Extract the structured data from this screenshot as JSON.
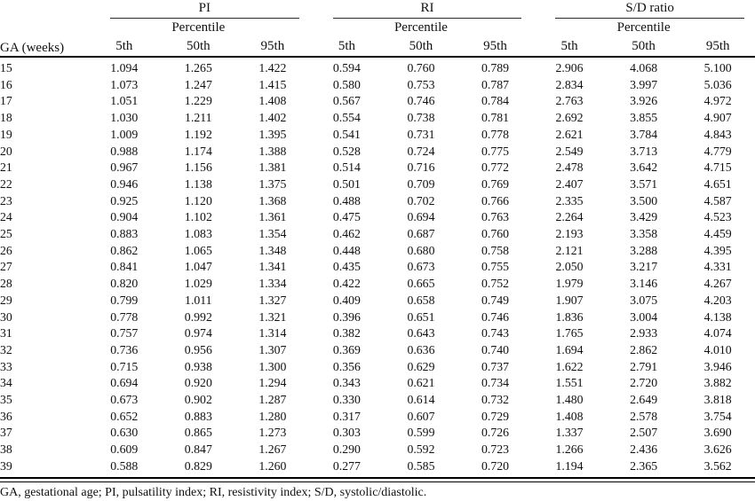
{
  "table": {
    "ga_header": "GA (weeks)",
    "groups": [
      {
        "label": "PI"
      },
      {
        "label": "RI"
      },
      {
        "label": "S/D ratio"
      }
    ],
    "percentile_label": "Percentile",
    "percentile_headers": [
      "5th",
      "50th",
      "95th"
    ],
    "rows": [
      {
        "ga": "15",
        "values": [
          "1.094",
          "1.265",
          "1.422",
          "0.594",
          "0.760",
          "0.789",
          "2.906",
          "4.068",
          "5.100"
        ]
      },
      {
        "ga": "16",
        "values": [
          "1.073",
          "1.247",
          "1.415",
          "0.580",
          "0.753",
          "0.787",
          "2.834",
          "3.997",
          "5.036"
        ]
      },
      {
        "ga": "17",
        "values": [
          "1.051",
          "1.229",
          "1.408",
          "0.567",
          "0.746",
          "0.784",
          "2.763",
          "3.926",
          "4.972"
        ]
      },
      {
        "ga": "18",
        "values": [
          "1.030",
          "1.211",
          "1.402",
          "0.554",
          "0.738",
          "0.781",
          "2.692",
          "3.855",
          "4.907"
        ]
      },
      {
        "ga": "19",
        "values": [
          "1.009",
          "1.192",
          "1.395",
          "0.541",
          "0.731",
          "0.778",
          "2.621",
          "3.784",
          "4.843"
        ]
      },
      {
        "ga": "20",
        "values": [
          "0.988",
          "1.174",
          "1.388",
          "0.528",
          "0.724",
          "0.775",
          "2.549",
          "3.713",
          "4.779"
        ]
      },
      {
        "ga": "21",
        "values": [
          "0.967",
          "1.156",
          "1.381",
          "0.514",
          "0.716",
          "0.772",
          "2.478",
          "3.642",
          "4.715"
        ]
      },
      {
        "ga": "22",
        "values": [
          "0.946",
          "1.138",
          "1.375",
          "0.501",
          "0.709",
          "0.769",
          "2.407",
          "3.571",
          "4.651"
        ]
      },
      {
        "ga": "23",
        "values": [
          "0.925",
          "1.120",
          "1.368",
          "0.488",
          "0.702",
          "0.766",
          "2.335",
          "3.500",
          "4.587"
        ]
      },
      {
        "ga": "24",
        "values": [
          "0.904",
          "1.102",
          "1.361",
          "0.475",
          "0.694",
          "0.763",
          "2.264",
          "3.429",
          "4.523"
        ]
      },
      {
        "ga": "25",
        "values": [
          "0.883",
          "1.083",
          "1.354",
          "0.462",
          "0.687",
          "0.760",
          "2.193",
          "3.358",
          "4.459"
        ]
      },
      {
        "ga": "26",
        "values": [
          "0.862",
          "1.065",
          "1.348",
          "0.448",
          "0.680",
          "0.758",
          "2.121",
          "3.288",
          "4.395"
        ]
      },
      {
        "ga": "27",
        "values": [
          "0.841",
          "1.047",
          "1.341",
          "0.435",
          "0.673",
          "0.755",
          "2.050",
          "3.217",
          "4.331"
        ]
      },
      {
        "ga": "28",
        "values": [
          "0.820",
          "1.029",
          "1.334",
          "0.422",
          "0.665",
          "0.752",
          "1.979",
          "3.146",
          "4.267"
        ]
      },
      {
        "ga": "29",
        "values": [
          "0.799",
          "1.011",
          "1.327",
          "0.409",
          "0.658",
          "0.749",
          "1.907",
          "3.075",
          "4.203"
        ]
      },
      {
        "ga": "30",
        "values": [
          "0.778",
          "0.992",
          "1.321",
          "0.396",
          "0.651",
          "0.746",
          "1.836",
          "3.004",
          "4.138"
        ]
      },
      {
        "ga": "31",
        "values": [
          "0.757",
          "0.974",
          "1.314",
          "0.382",
          "0.643",
          "0.743",
          "1.765",
          "2.933",
          "4.074"
        ]
      },
      {
        "ga": "32",
        "values": [
          "0.736",
          "0.956",
          "1.307",
          "0.369",
          "0.636",
          "0.740",
          "1.694",
          "2.862",
          "4.010"
        ]
      },
      {
        "ga": "33",
        "values": [
          "0.715",
          "0.938",
          "1.300",
          "0.356",
          "0.629",
          "0.737",
          "1.622",
          "2.791",
          "3.946"
        ]
      },
      {
        "ga": "34",
        "values": [
          "0.694",
          "0.920",
          "1.294",
          "0.343",
          "0.621",
          "0.734",
          "1.551",
          "2.720",
          "3.882"
        ]
      },
      {
        "ga": "35",
        "values": [
          "0.673",
          "0.902",
          "1.287",
          "0.330",
          "0.614",
          "0.732",
          "1.480",
          "2.649",
          "3.818"
        ]
      },
      {
        "ga": "36",
        "values": [
          "0.652",
          "0.883",
          "1.280",
          "0.317",
          "0.607",
          "0.729",
          "1.408",
          "2.578",
          "3.754"
        ]
      },
      {
        "ga": "37",
        "values": [
          "0.630",
          "0.865",
          "1.273",
          "0.303",
          "0.599",
          "0.726",
          "1.337",
          "2.507",
          "3.690"
        ]
      },
      {
        "ga": "38",
        "values": [
          "0.609",
          "0.847",
          "1.267",
          "0.290",
          "0.592",
          "0.723",
          "1.266",
          "2.436",
          "3.626"
        ]
      },
      {
        "ga": "39",
        "values": [
          "0.588",
          "0.829",
          "1.260",
          "0.277",
          "0.585",
          "0.720",
          "1.194",
          "2.365",
          "3.562"
        ]
      }
    ],
    "footnote": "GA, gestational age; PI, pulsatility index; RI, resistivity index; S/D, systolic/diastolic."
  }
}
